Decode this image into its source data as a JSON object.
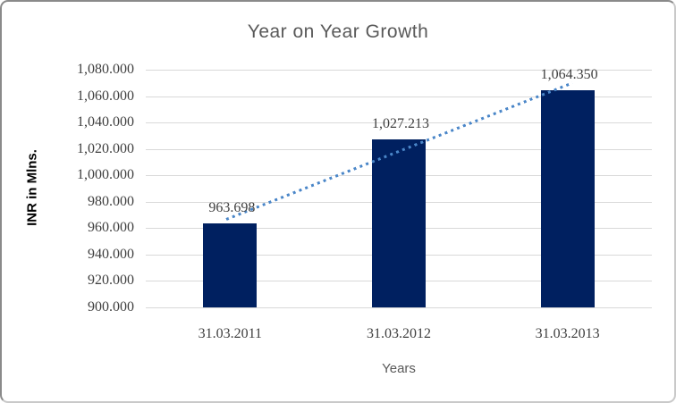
{
  "chart_data": {
    "type": "bar",
    "title": "Year on Year Growth",
    "xlabel": "Years",
    "ylabel": "INR in Mlns.",
    "categories": [
      "31.03.2011",
      "31.03.2012",
      "31.03.2013"
    ],
    "values": [
      963.698,
      1027.213,
      1064.35
    ],
    "data_labels": [
      "963.698",
      "1,027.213",
      "1,064.350"
    ],
    "y_tick_labels": [
      "900.000",
      "920.000",
      "940.000",
      "960.000",
      "980.000",
      "1,000.000",
      "1,020.000",
      "1,040.000",
      "1,060.000",
      "1,080.000"
    ],
    "ylim": [
      900,
      1080
    ],
    "grid": true,
    "legend": "none",
    "trendline": {
      "type": "linear",
      "style": "dotted"
    },
    "colors": {
      "bar": "#002060",
      "trendline": "#4a86c8",
      "gridline": "#d9d9d9",
      "title": "#595959",
      "axis_text": "#3f3f3f",
      "axis_title_text": "#000000",
      "x_axis_title": "#595959"
    }
  }
}
